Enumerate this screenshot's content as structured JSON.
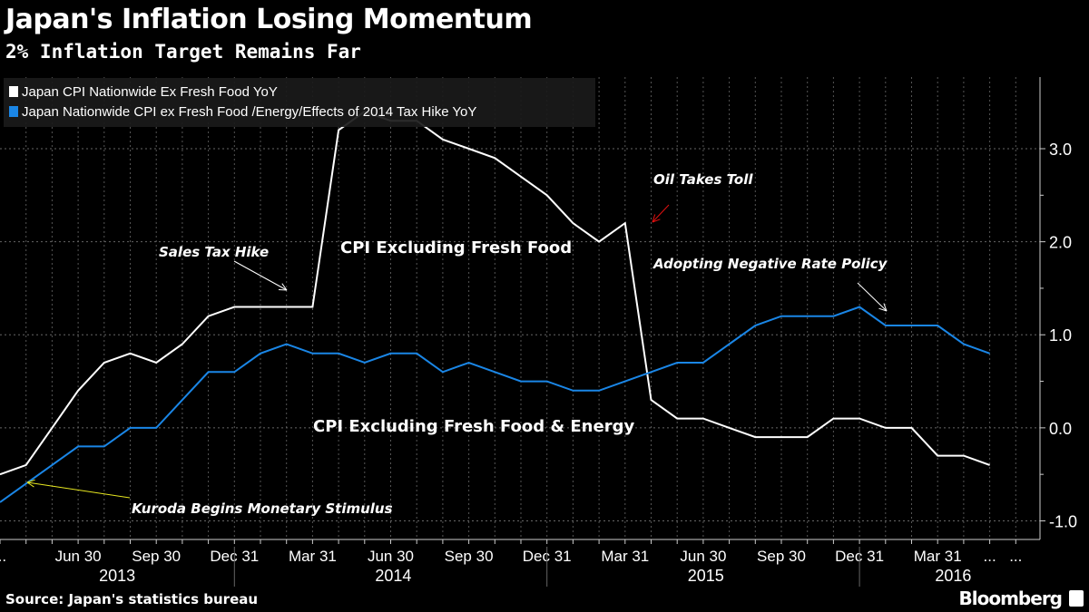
{
  "header": {
    "title": "Japan's Inflation Losing Momentum",
    "subtitle": "2% Inflation Target Remains Far"
  },
  "footer": {
    "source": "Source: Japan's statistics bureau",
    "brand": "Bloomberg"
  },
  "chart_data": {
    "type": "line",
    "title": "Japan's Inflation Losing Momentum",
    "subtitle": "2% Inflation Target Remains Far",
    "x_start": "Mar 2013",
    "x_end": "May 2016",
    "frequency": "monthly",
    "ylim": [
      -1.2,
      3.77
    ],
    "yticks": [
      3.0,
      2.0,
      1.0,
      0.0,
      -1.0
    ],
    "ytick_labels": [
      "3.0",
      "2.0",
      "1.0",
      "0.0",
      "-1.0"
    ],
    "xtick_labels": [
      {
        "i": 0,
        "label": "..."
      },
      {
        "i": 3,
        "label": "Jun 30"
      },
      {
        "i": 6,
        "label": "Sep 30"
      },
      {
        "i": 9,
        "label": "Dec 31"
      },
      {
        "i": 12,
        "label": "Mar 31"
      },
      {
        "i": 15,
        "label": "Jun 30"
      },
      {
        "i": 18,
        "label": "Sep 30"
      },
      {
        "i": 21,
        "label": "Dec 31"
      },
      {
        "i": 24,
        "label": "Mar 31"
      },
      {
        "i": 27,
        "label": "Jun 30"
      },
      {
        "i": 30,
        "label": "Sep 30"
      },
      {
        "i": 33,
        "label": "Dec 31"
      },
      {
        "i": 36,
        "label": "Mar 31"
      },
      {
        "i": 38,
        "label": "..."
      },
      {
        "i": 39,
        "label": "..."
      }
    ],
    "years": [
      {
        "label": "2013",
        "i": 4.5
      },
      {
        "label": "2014",
        "i": 15.1
      },
      {
        "label": "2015",
        "i": 27.1
      },
      {
        "label": "2016",
        "i": 36.6
      }
    ],
    "year_dividers": [
      9,
      21,
      33
    ],
    "grid": true,
    "legend_position": "top-left",
    "series": [
      {
        "name": "Japan CPI Nationwide Ex Fresh Food YoY",
        "color": "#ffffff",
        "values": [
          -0.5,
          -0.4,
          0.0,
          0.4,
          0.7,
          0.8,
          0.7,
          0.9,
          1.2,
          1.3,
          1.3,
          1.3,
          1.3,
          3.2,
          3.4,
          3.3,
          3.3,
          3.1,
          3.0,
          2.9,
          2.7,
          2.5,
          2.2,
          2.0,
          2.2,
          0.3,
          0.1,
          0.1,
          0.0,
          -0.1,
          -0.1,
          -0.1,
          0.1,
          0.1,
          0.0,
          0.0,
          -0.3,
          -0.3,
          -0.4
        ]
      },
      {
        "name": "Japan Nationwide CPI ex Fresh Food /Energy/Effects of 2014 Tax Hike YoY",
        "color": "#1a86e6",
        "values": [
          -0.8,
          -0.6,
          -0.4,
          -0.2,
          -0.2,
          0.0,
          0.0,
          0.3,
          0.6,
          0.6,
          0.8,
          0.9,
          0.8,
          0.8,
          0.7,
          0.8,
          0.8,
          0.6,
          0.7,
          0.6,
          0.5,
          0.5,
          0.4,
          0.4,
          0.5,
          0.6,
          0.7,
          0.7,
          0.9,
          1.1,
          1.2,
          1.2,
          1.2,
          1.3,
          1.1,
          1.1,
          1.1,
          0.9,
          0.8
        ]
      }
    ],
    "annotations": [
      {
        "text": "Sales Tax Hike",
        "i": 11,
        "y": 1.6,
        "color": "#ffffff",
        "arrow_to_i": 11,
        "arrow_to_y": 1.45
      },
      {
        "text": "CPI Excluding Fresh Food",
        "i": 17.5,
        "y": 1.95,
        "color": "#ffffff"
      },
      {
        "text": "Oil Takes Toll",
        "i": 27.4,
        "y": 2.7,
        "color": "#ffffff",
        "arrow_color": "#e01010"
      },
      {
        "text": "Adopting Negative Rate Policy",
        "i": 31,
        "y": 1.75,
        "color": "#ffffff"
      },
      {
        "text": "CPI Excluding Fresh Food & Energy",
        "i": 18.6,
        "y": 0.0,
        "color": "#ffffff"
      },
      {
        "text": "Kuroda Begins Monetary Stimulus",
        "i": 10,
        "y": -0.88,
        "color": "#ffffff",
        "arrow_color": "#e8e820"
      }
    ]
  }
}
